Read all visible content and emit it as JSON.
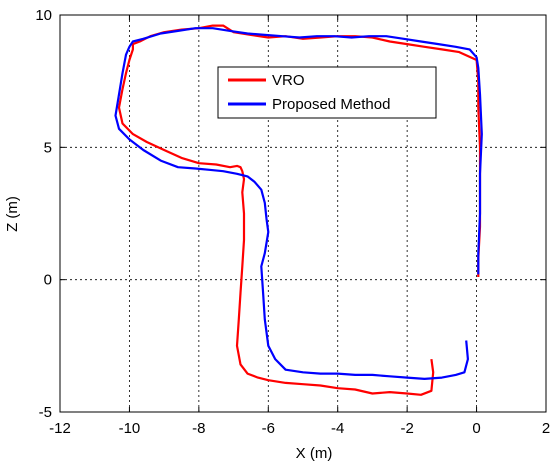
{
  "chart_data": {
    "type": "line",
    "xlabel": "X (m)",
    "ylabel": "Z (m)",
    "xlim": [
      -12,
      2
    ],
    "ylim": [
      -5,
      10
    ],
    "xticks": [
      -12,
      -10,
      -8,
      -6,
      -4,
      -2,
      0,
      2
    ],
    "yticks": [
      -5,
      0,
      5,
      10
    ],
    "xtick_labels": [
      "-12",
      "-10",
      "-8",
      "-6",
      "-4",
      "-2",
      "0",
      "2"
    ],
    "ytick_labels": [
      "-5",
      "0",
      "5",
      "10"
    ],
    "grid": true,
    "legend_position": "top-center",
    "series": [
      {
        "name": "VRO",
        "color": "#ff0000",
        "x": [
          -1.3,
          -1.25,
          -1.3,
          -1.6,
          -2.0,
          -2.5,
          -3.0,
          -3.5,
          -4.0,
          -4.5,
          -5.0,
          -5.5,
          -6.0,
          -6.3,
          -6.6,
          -6.8,
          -6.9,
          -6.85,
          -6.8,
          -6.75,
          -6.7,
          -6.7,
          -6.75,
          -6.7,
          -6.75,
          -6.8,
          -6.9,
          -7.1,
          -7.5,
          -8.0,
          -8.5,
          -9.0,
          -9.5,
          -9.9,
          -10.2,
          -10.3,
          -10.2,
          -10.1,
          -10.0,
          -9.9,
          -9.9,
          -9.7,
          -9.4,
          -9.0,
          -8.5,
          -8.0,
          -7.6,
          -7.3,
          -7.0,
          -6.5,
          -6.0,
          -5.5,
          -5.0,
          -4.5,
          -4.0,
          -3.5,
          -3.0,
          -2.5,
          -2.0,
          -1.5,
          -1.0,
          -0.5,
          0.0,
          0.05,
          0.05,
          0.1,
          0.1,
          0.1,
          0.05,
          0.05
        ],
        "y": [
          -3.0,
          -3.5,
          -4.2,
          -4.35,
          -4.3,
          -4.25,
          -4.3,
          -4.15,
          -4.1,
          -4.0,
          -3.95,
          -3.9,
          -3.8,
          -3.7,
          -3.55,
          -3.2,
          -2.5,
          -1.5,
          -0.5,
          0.5,
          1.5,
          2.5,
          3.3,
          3.8,
          4.1,
          4.25,
          4.3,
          4.25,
          4.35,
          4.4,
          4.6,
          4.9,
          5.2,
          5.5,
          5.9,
          6.5,
          7.2,
          7.8,
          8.3,
          8.7,
          8.9,
          9.0,
          9.2,
          9.35,
          9.45,
          9.5,
          9.6,
          9.6,
          9.35,
          9.25,
          9.15,
          9.2,
          9.1,
          9.15,
          9.2,
          9.2,
          9.15,
          9.0,
          8.9,
          8.8,
          8.7,
          8.6,
          8.3,
          7.5,
          6.5,
          5.0,
          3.5,
          2.0,
          0.8,
          0.1
        ]
      },
      {
        "name": "Proposed Method",
        "color": "#0000ff",
        "x": [
          -0.3,
          -0.25,
          -0.35,
          -0.6,
          -1.0,
          -1.5,
          -2.0,
          -2.5,
          -3.0,
          -3.5,
          -4.0,
          -4.5,
          -5.0,
          -5.5,
          -5.8,
          -6.0,
          -6.1,
          -6.15,
          -6.2,
          -6.1,
          -6.0,
          -6.05,
          -6.1,
          -6.2,
          -6.4,
          -6.6,
          -6.9,
          -7.3,
          -7.7,
          -8.1,
          -8.6,
          -9.1,
          -9.6,
          -10.0,
          -10.3,
          -10.4,
          -10.3,
          -10.2,
          -10.1,
          -10.0,
          -9.9,
          -9.6,
          -9.1,
          -8.6,
          -8.1,
          -7.6,
          -7.1,
          -6.6,
          -6.1,
          -5.6,
          -5.1,
          -4.6,
          -4.1,
          -3.6,
          -3.1,
          -2.6,
          -2.1,
          -1.6,
          -1.1,
          -0.6,
          -0.2,
          0.0,
          0.05,
          0.1,
          0.15,
          0.1,
          0.1,
          0.05,
          0.05
        ],
        "y": [
          -2.3,
          -3.0,
          -3.5,
          -3.6,
          -3.7,
          -3.75,
          -3.7,
          -3.65,
          -3.6,
          -3.6,
          -3.55,
          -3.55,
          -3.5,
          -3.4,
          -3.0,
          -2.5,
          -1.5,
          -0.5,
          0.5,
          1.0,
          1.8,
          2.3,
          2.9,
          3.4,
          3.7,
          3.9,
          4.0,
          4.1,
          4.15,
          4.2,
          4.25,
          4.5,
          4.9,
          5.3,
          5.7,
          6.2,
          7.0,
          7.8,
          8.5,
          8.8,
          9.0,
          9.1,
          9.3,
          9.4,
          9.5,
          9.5,
          9.4,
          9.3,
          9.25,
          9.2,
          9.15,
          9.2,
          9.2,
          9.15,
          9.2,
          9.2,
          9.1,
          9.0,
          8.9,
          8.8,
          8.7,
          8.4,
          8.0,
          7.0,
          5.5,
          4.0,
          2.5,
          1.0,
          0.2
        ]
      }
    ]
  }
}
